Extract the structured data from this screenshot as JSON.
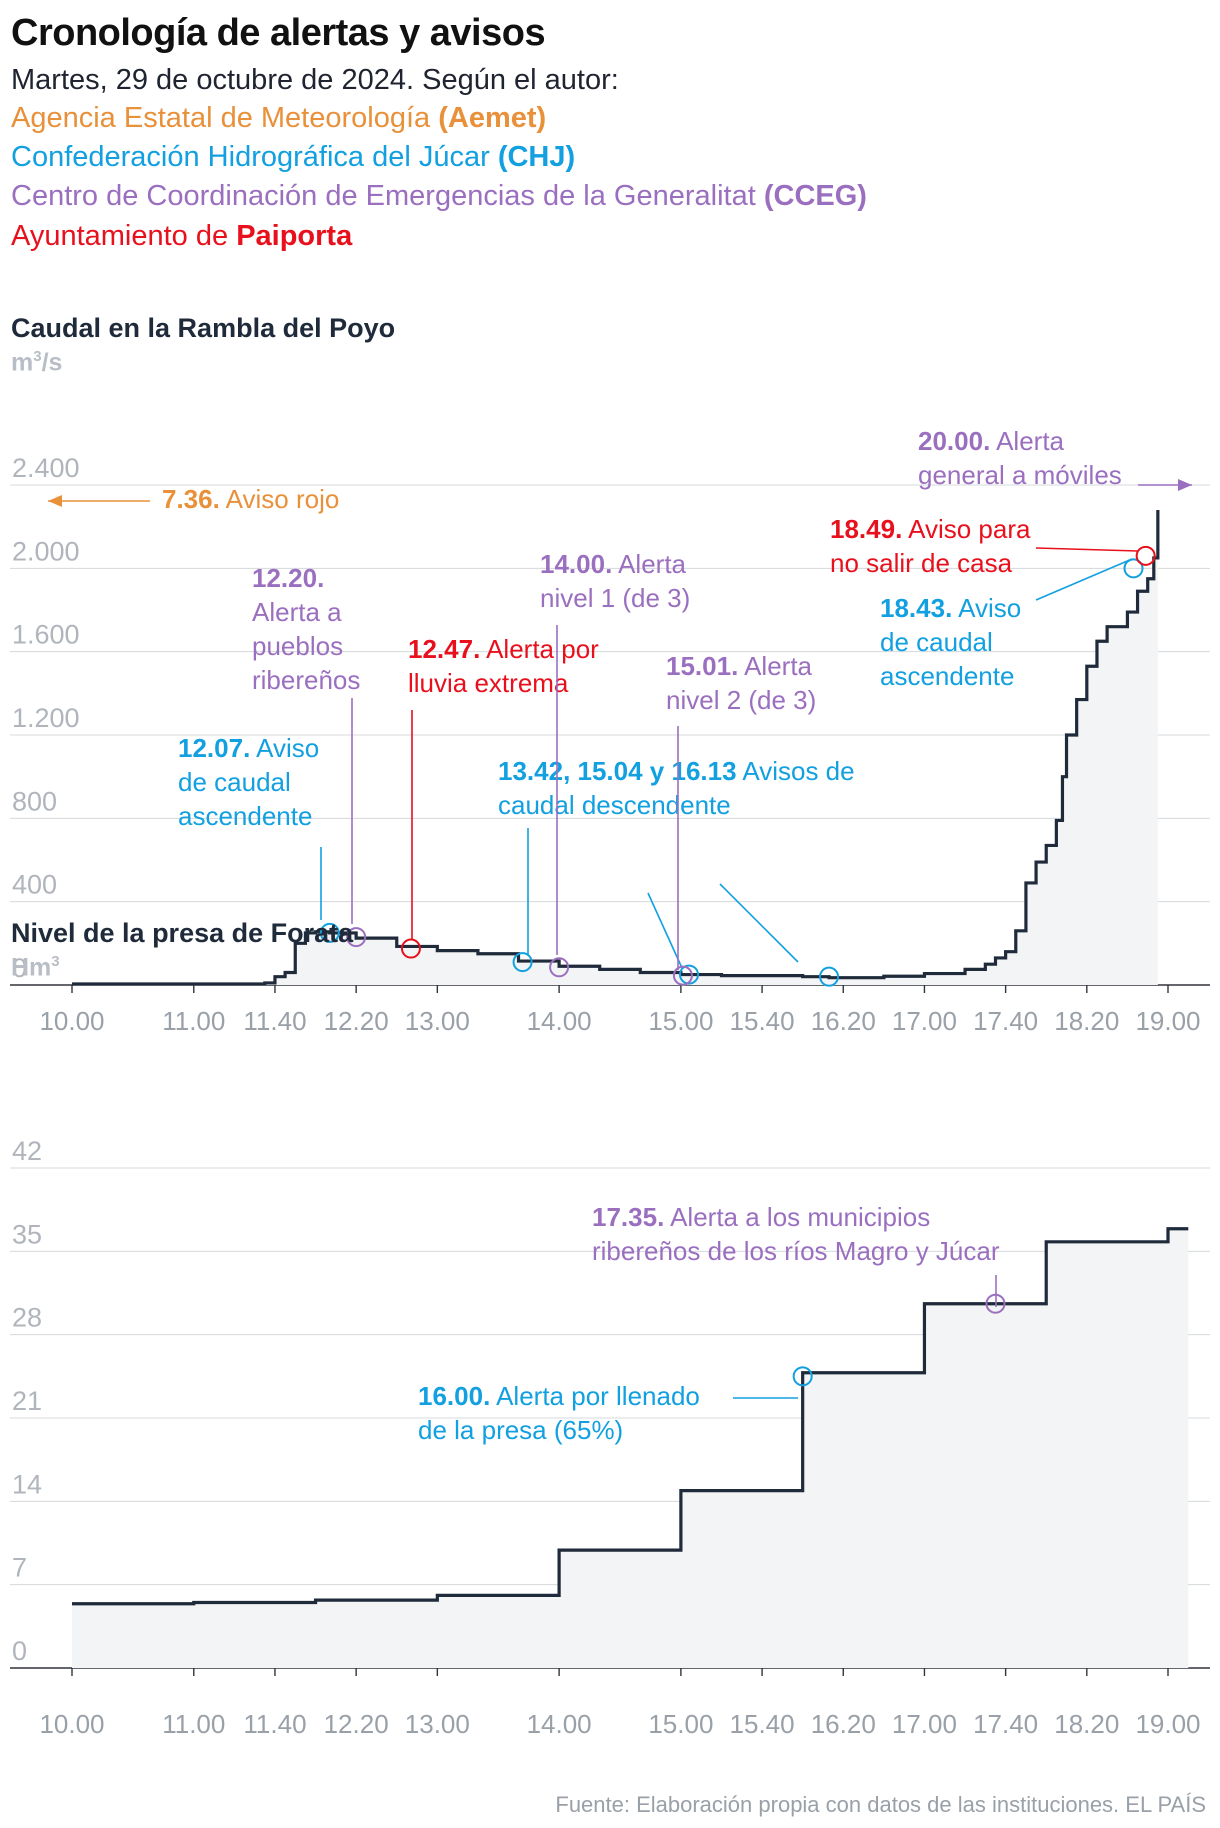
{
  "title": "Cronología de alertas y avisos",
  "subtitle": "Martes, 29 de octubre de 2024. Según el autor:",
  "legend": [
    {
      "name": "Agencia Estatal de Meteorología",
      "abbr": "(Aemet)",
      "color": "#e8913a"
    },
    {
      "name": "Confederación Hidrográfica del Júcar",
      "abbr": "(CHJ)",
      "color": "#12a0e0"
    },
    {
      "name": "Centro de Coordinación de Emergencias de la Generalitat",
      "abbr": "(CCEG)",
      "color": "#9b6fbf"
    },
    {
      "name": "Ayuntamiento de",
      "abbr": "Paiporta",
      "color": "#e8101c"
    }
  ],
  "source": "Fuente: Elaboración propia con datos de las instituciones. EL PAÍS",
  "chart_data": [
    {
      "type": "area",
      "title": "Caudal en la Rambla del Poyo",
      "unit": "m³/s",
      "ylim": [
        0,
        2400
      ],
      "yticks": [
        0,
        400,
        800,
        1200,
        1600,
        2000,
        2400
      ],
      "ytick_labels": [
        "0",
        "400",
        "800",
        "1.200",
        "1.600",
        "2.000",
        "2.400"
      ],
      "xlim": [
        "10:00",
        "19:00"
      ],
      "xticks": [
        "10.00",
        "11.00",
        "11.40",
        "12.20",
        "13.00",
        "14.00",
        "15.00",
        "15.40",
        "16.20",
        "17.00",
        "17.40",
        "18.20",
        "19.00"
      ],
      "grid": true,
      "step_data": [
        [
          "10:00",
          5
        ],
        [
          "11:20",
          5
        ],
        [
          "11:35",
          10
        ],
        [
          "11:40",
          40
        ],
        [
          "11:45",
          60
        ],
        [
          "11:50",
          200
        ],
        [
          "11:55",
          250
        ],
        [
          "12:00",
          255
        ],
        [
          "12:07",
          250
        ],
        [
          "12:20",
          225
        ],
        [
          "12:40",
          185
        ],
        [
          "13:00",
          165
        ],
        [
          "13:20",
          150
        ],
        [
          "13:40",
          115
        ],
        [
          "14:00",
          90
        ],
        [
          "14:20",
          75
        ],
        [
          "14:40",
          60
        ],
        [
          "15:00",
          50
        ],
        [
          "15:20",
          45
        ],
        [
          "15:40",
          45
        ],
        [
          "16:00",
          40
        ],
        [
          "16:13",
          35
        ],
        [
          "16:40",
          42
        ],
        [
          "17:00",
          55
        ],
        [
          "17:20",
          75
        ],
        [
          "17:30",
          100
        ],
        [
          "17:35",
          130
        ],
        [
          "17:40",
          160
        ],
        [
          "17:45",
          260
        ],
        [
          "17:50",
          490
        ],
        [
          "17:55",
          590
        ],
        [
          "18:00",
          670
        ],
        [
          "18:05",
          790
        ],
        [
          "18:08",
          1000
        ],
        [
          "18:10",
          1200
        ],
        [
          "18:15",
          1370
        ],
        [
          "18:20",
          1530
        ],
        [
          "18:25",
          1650
        ],
        [
          "18:30",
          1720
        ],
        [
          "18:40",
          1790
        ],
        [
          "18:45",
          1890
        ],
        [
          "18:50",
          1950
        ],
        [
          "18:53",
          2050
        ],
        [
          "18:55",
          2280
        ]
      ],
      "events": [
        {
          "time": "12:07",
          "y": 250,
          "label": "12.07.",
          "text": [
            "Aviso",
            "de caudal",
            "ascendente"
          ],
          "agency": "CHJ"
        },
        {
          "time": "12:20",
          "y": 230,
          "label": "12.20.",
          "text": [
            "Alerta a",
            "pueblos",
            "ribereños"
          ],
          "agency": "CCEG"
        },
        {
          "time": "12:47",
          "y": 175,
          "label": "12.47.",
          "text": [
            "Alerta por",
            "lluvia extrema"
          ],
          "agency": "Paiporta"
        },
        {
          "time": "13:42",
          "y": 110,
          "label": "13.42, 15.04 y 16.13",
          "text": [
            "Avisos de",
            "caudal descendente"
          ],
          "agency": "CHJ"
        },
        {
          "time": "15:04",
          "y": 50,
          "label": "",
          "text": [],
          "agency": "CHJ"
        },
        {
          "time": "16:13",
          "y": 40,
          "label": "",
          "text": [],
          "agency": "CHJ"
        },
        {
          "time": "14:00",
          "y": 85,
          "label": "14.00.",
          "text": [
            "Alerta",
            "nivel 1 (de 3)"
          ],
          "agency": "CCEG"
        },
        {
          "time": "15:01",
          "y": 45,
          "label": "15.01.",
          "text": [
            "Alerta",
            "nivel 2 (de 3)"
          ],
          "agency": "CCEG"
        },
        {
          "time": "18:43",
          "y": 2000,
          "label": "18.43.",
          "text": [
            "Aviso",
            "de caudal",
            "ascendente"
          ],
          "agency": "CHJ"
        },
        {
          "time": "18:49",
          "y": 2060,
          "label": "18.49.",
          "text": [
            "Aviso para",
            "no salir de casa"
          ],
          "agency": "Paiporta"
        },
        {
          "time": "20:00",
          "label": "20.00.",
          "text": [
            "Alerta",
            "general a móviles"
          ],
          "agency": "CCEG",
          "offscreen": "right"
        },
        {
          "time": "7:36",
          "label": "7.36.",
          "text": [
            "Aviso rojo"
          ],
          "agency": "Aemet",
          "offscreen": "left"
        }
      ]
    },
    {
      "type": "area",
      "title": "Nivel de la presa de Forata",
      "unit": "Hm³",
      "ylim": [
        0,
        42
      ],
      "yticks": [
        0,
        7,
        14,
        21,
        28,
        35,
        42
      ],
      "ytick_labels": [
        "0",
        "7",
        "14",
        "21",
        "28",
        "35",
        "42"
      ],
      "xlim": [
        "10:00",
        "19:00"
      ],
      "xticks": [
        "10.00",
        "11.00",
        "11.40",
        "12.20",
        "13.00",
        "14.00",
        "15.00",
        "15.40",
        "16.20",
        "17.00",
        "17.40",
        "18.20",
        "19.00"
      ],
      "grid": true,
      "step_data": [
        [
          "10:00",
          5.4
        ],
        [
          "11:00",
          5.5
        ],
        [
          "12:00",
          5.7
        ],
        [
          "13:00",
          6.1
        ],
        [
          "14:00",
          9.9
        ],
        [
          "15:00",
          14.9
        ],
        [
          "16:00",
          24.8
        ],
        [
          "17:00",
          30.6
        ],
        [
          "18:00",
          35.8
        ],
        [
          "19:00",
          36.9
        ],
        [
          "19:10",
          36.9
        ]
      ],
      "events": [
        {
          "time": "16:00",
          "y": 24.5,
          "label": "16.00.",
          "text": [
            "Alerta por llenado",
            "de la presa (65%)"
          ],
          "agency": "CHJ"
        },
        {
          "time": "17:35",
          "y": 30.6,
          "label": "17.35.",
          "text": [
            "Alerta a los municipios",
            "ribereños de los ríos Magro y Júcar"
          ],
          "agency": "CCEG"
        }
      ]
    }
  ]
}
